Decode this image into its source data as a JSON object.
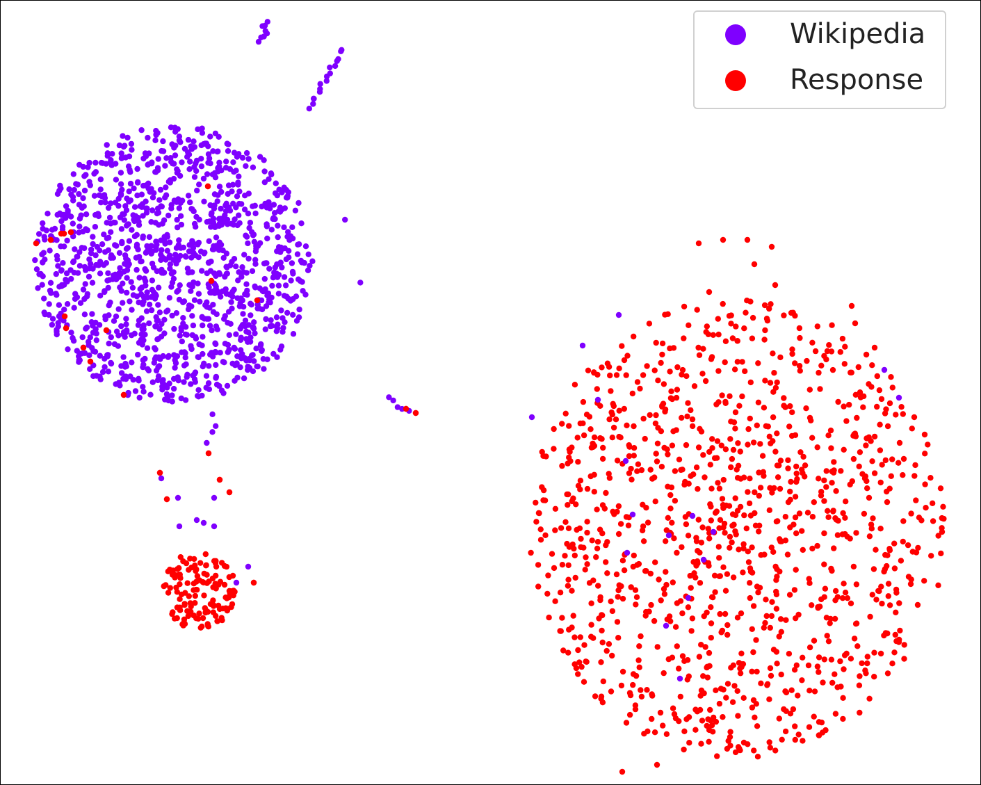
{
  "chart_data": {
    "type": "scatter",
    "title": "",
    "xlabel": "",
    "ylabel": "",
    "axes_visible": false,
    "grid": false,
    "legend": {
      "placement": "top-right",
      "entries": [
        "Wikipedia",
        "Response"
      ]
    },
    "series": [
      {
        "name": "Wikipedia",
        "color": "#7f00ff",
        "clusters": [
          {
            "center": [
              250,
              380
            ],
            "radius": 200,
            "count": 1250
          }
        ],
        "arms": [
          {
            "from": [
              372,
              58
            ],
            "to": [
              385,
              33
            ],
            "count": 8
          },
          {
            "from": [
              446,
              155
            ],
            "to": [
              492,
              73
            ],
            "count": 16
          },
          {
            "from": [
              302,
              635
            ],
            "to": [
              312,
              600
            ],
            "count": 4
          },
          {
            "from": [
              560,
              572
            ],
            "to": [
              585,
              590
            ],
            "count": 5
          },
          {
            "from": [
              500,
              316
            ],
            "to": [
              520,
              406
            ],
            "count": 2
          }
        ],
        "extra": [
          [
            232,
            688
          ],
          [
            256,
            716
          ],
          [
            308,
            716
          ],
          [
            258,
            757
          ],
          [
            283,
            748
          ],
          [
            293,
            752
          ],
          [
            308,
            757
          ],
          [
            357,
            815
          ],
          [
            340,
            838
          ],
          [
            890,
            453
          ],
          [
            838,
            497
          ],
          [
            860,
            575
          ],
          [
            765,
            600
          ],
          [
            900,
            663
          ],
          [
            910,
            740
          ],
          [
            996,
            742
          ],
          [
            1026,
            765
          ],
          [
            902,
            795
          ],
          [
            1012,
            805
          ],
          [
            990,
            860
          ],
          [
            958,
            900
          ],
          [
            978,
            976
          ],
          [
            1272,
            532
          ],
          [
            1293,
            572
          ],
          [
            962,
            770
          ]
        ]
      },
      {
        "name": "Response",
        "color": "#ff0000",
        "clusters": [
          {
            "center": [
              1060,
              760
            ],
            "rx": 300,
            "ry": 330,
            "count": 1100
          },
          {
            "center": [
              285,
              850
            ],
            "radius": 55,
            "count": 130
          }
        ],
        "extra": [
          [
            92,
            336
          ],
          [
            102,
            334
          ],
          [
            88,
            336
          ],
          [
            52,
            350
          ],
          [
            73,
            345
          ],
          [
            93,
            455
          ],
          [
            95,
            472
          ],
          [
            120,
            500
          ],
          [
            130,
            520
          ],
          [
            153,
            475
          ],
          [
            178,
            568
          ],
          [
            299,
            268
          ],
          [
            304,
            404
          ],
          [
            370,
            432
          ],
          [
            300,
            652
          ],
          [
            230,
            680
          ],
          [
            240,
            718
          ],
          [
            316,
            690
          ],
          [
            330,
            708
          ],
          [
            598,
            594
          ],
          [
            584,
            588
          ],
          [
            365,
            838
          ],
          [
            330,
            850
          ],
          [
            1005,
            350
          ],
          [
            1040,
            345
          ],
          [
            1075,
            345
          ],
          [
            1110,
            355
          ],
          [
            1085,
            380
          ],
          [
            1115,
            410
          ],
          [
            1020,
            420
          ],
          [
            1225,
            440
          ],
          [
            1230,
            465
          ],
          [
            1190,
            505
          ],
          [
            1258,
            500
          ],
          [
            1280,
            580
          ],
          [
            1315,
            600
          ],
          [
            1330,
            625
          ],
          [
            1300,
            660
          ],
          [
            1355,
            765
          ],
          [
            1310,
            840
          ],
          [
            1320,
            870
          ],
          [
            895,
            1110
          ],
          [
            945,
            1100
          ],
          [
            1050,
            1060
          ]
        ]
      }
    ]
  }
}
